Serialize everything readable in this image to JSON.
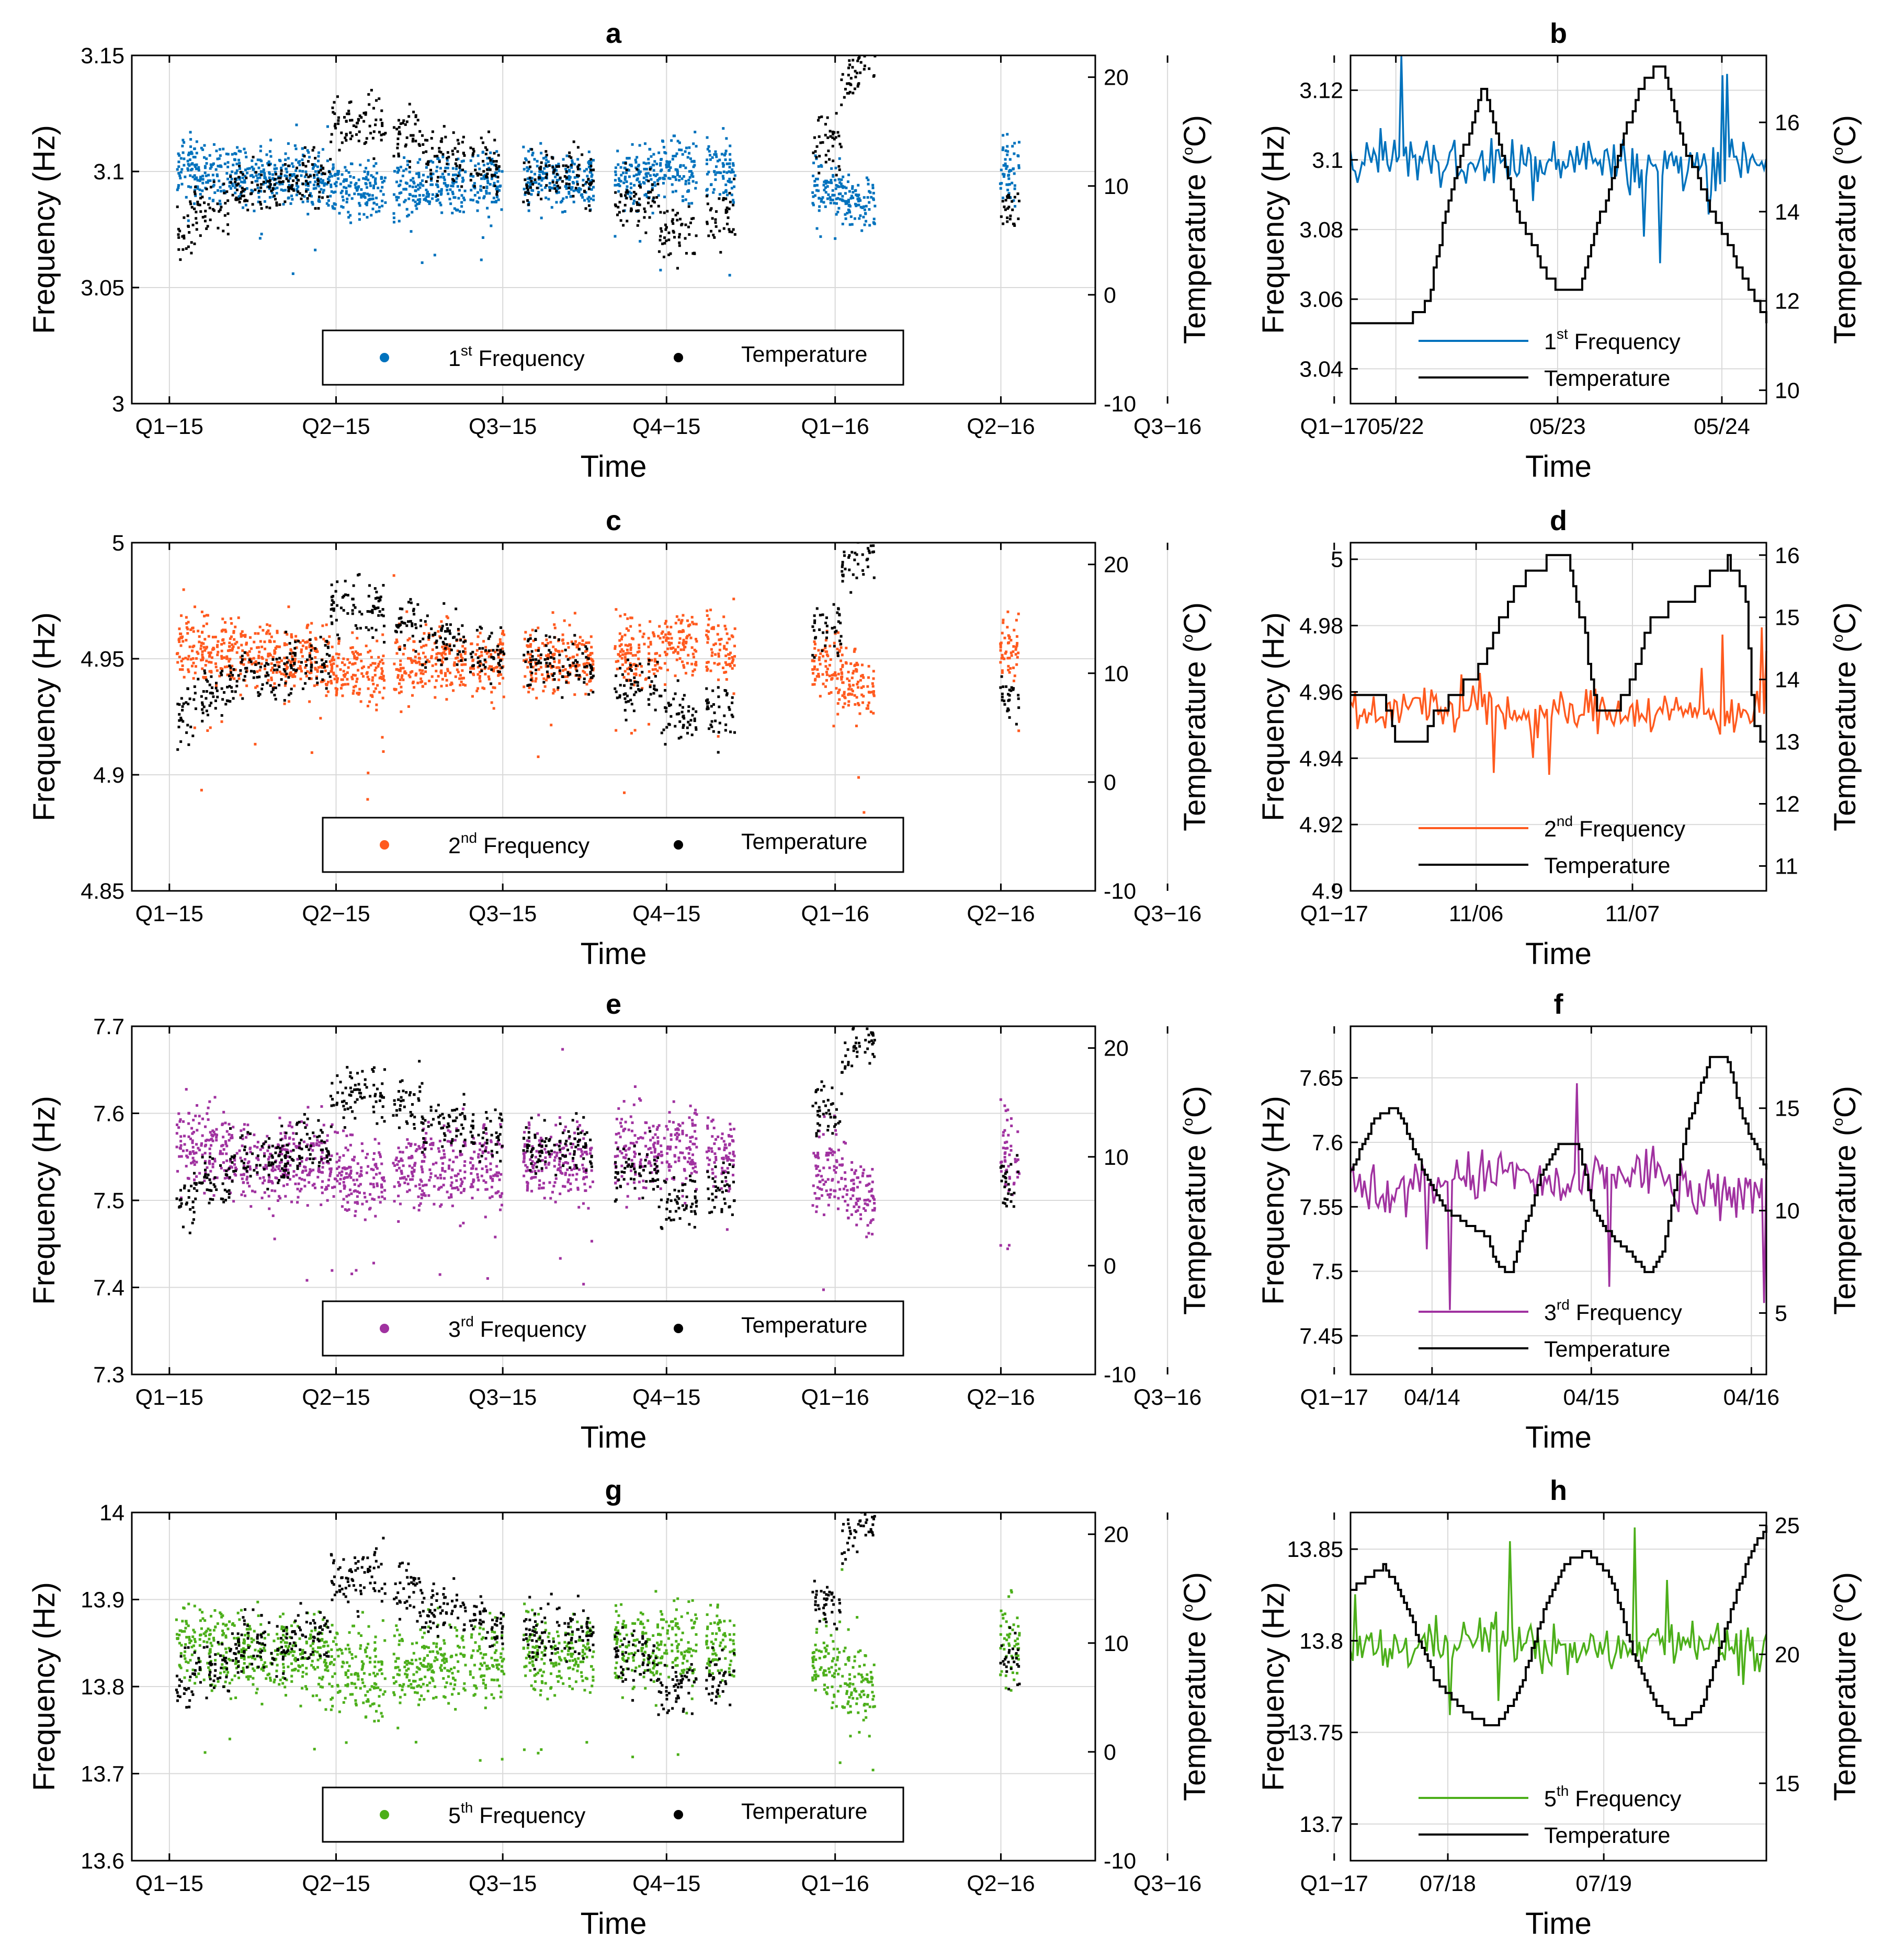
{
  "chart_data": [
    {
      "panel": "a",
      "type": "scatter",
      "title": "a",
      "xlabel": "Time",
      "ylabel": "Frequency (Hz)",
      "y2label_base": "Temperature (",
      "y2label_sup": "o",
      "y2label_end": "C)",
      "x_ticks": [
        "Q1−15",
        "Q2−15",
        "Q3−15",
        "Q4−15",
        "Q1−16",
        "Q2−16",
        "Q3−16",
        "Q1−17"
      ],
      "ylim": [
        3,
        3.15
      ],
      "y_ticks": [
        "3",
        "3.05",
        "3.1",
        "3.15"
      ],
      "y2lim": [
        -10,
        22
      ],
      "y2_ticks": [
        "-10",
        "0",
        "10",
        "20"
      ],
      "legend": [
        {
          "label": "Frequency",
          "prefix": "1",
          "sup": "st"
        },
        {
          "label": "Temperature"
        }
      ],
      "series": [
        {
          "name": "1st Frequency",
          "color": "#0072bd",
          "level_hz": 3.098,
          "spread_hz": 0.012
        },
        {
          "name": "Temperature",
          "color": "#000000",
          "levels_c": [
            6,
            10,
            12,
            16,
            13,
            12,
            10,
            8,
            6,
            6,
            12,
            16,
            7
          ]
        }
      ],
      "data_periods": [
        "2015-01 to 2015-07",
        "2015-08 to 2015-11",
        "2015-12 to 2016-01",
        "2016-04 to 2016-05",
        "2016-12"
      ]
    },
    {
      "panel": "b",
      "type": "line",
      "title": "b",
      "xlabel": "Time",
      "ylabel": "Frequency (Hz)",
      "y2label_base": "Temperature (",
      "y2label_sup": "o",
      "y2label_end": "C)",
      "x_ticks": [
        "05/22",
        "05/23",
        "05/24"
      ],
      "ylim": [
        3.03,
        3.13
      ],
      "y_ticks": [
        "3.04",
        "3.06",
        "3.08",
        "3.1",
        "3.12"
      ],
      "y2lim": [
        9.7,
        17.5
      ],
      "y2_ticks": [
        "10",
        "12",
        "14",
        "16"
      ],
      "legend": [
        {
          "label": "Frequency",
          "prefix": "1",
          "sup": "st"
        },
        {
          "label": "Temperature"
        }
      ],
      "series": [
        {
          "name": "1st Frequency",
          "color": "#0072bd",
          "typical_hz": 3.1,
          "range_hz": [
            3.055,
            3.13
          ]
        },
        {
          "name": "Temperature",
          "color": "#000000",
          "keypoints_c": [
            [
              0,
              11.6
            ],
            [
              0.18,
              11.4
            ],
            [
              0.28,
              12.0
            ],
            [
              0.36,
              14.5
            ],
            [
              0.48,
              16.8
            ],
            [
              0.6,
              14.0
            ],
            [
              0.72,
              12.4
            ],
            [
              0.82,
              12.2
            ],
            [
              0.92,
              14.3
            ],
            [
              1.04,
              16.8
            ],
            [
              1.12,
              17.3
            ],
            [
              1.2,
              15.5
            ],
            [
              1.34,
              13.5
            ],
            [
              1.5,
              11.6
            ]
          ]
        }
      ]
    },
    {
      "panel": "c",
      "type": "scatter",
      "title": "c",
      "xlabel": "Time",
      "ylabel": "Frequency (Hz)",
      "y2label_base": "Temperature (",
      "y2label_sup": "o",
      "y2label_end": "C)",
      "x_ticks": [
        "Q1−15",
        "Q2−15",
        "Q3−15",
        "Q4−15",
        "Q1−16",
        "Q2−16",
        "Q3−16",
        "Q1−17"
      ],
      "ylim": [
        4.85,
        5
      ],
      "y_ticks": [
        "4.85",
        "4.9",
        "4.95",
        "5"
      ],
      "y2lim": [
        -10,
        22
      ],
      "y2_ticks": [
        "-10",
        "0",
        "10",
        "20"
      ],
      "legend": [
        {
          "label": "Frequency",
          "prefix": "2",
          "sup": "nd"
        },
        {
          "label": "Temperature"
        }
      ],
      "series": [
        {
          "name": "2nd Frequency",
          "color": "#ff5a1f",
          "level_hz": 4.952,
          "spread_hz": 0.014
        },
        {
          "name": "Temperature",
          "color": "#000000",
          "levels_c": [
            6,
            10,
            12,
            16,
            13,
            12,
            10,
            8,
            6,
            6,
            12,
            16,
            7
          ]
        }
      ]
    },
    {
      "panel": "d",
      "type": "line",
      "title": "d",
      "xlabel": "Time",
      "ylabel": "Frequency (Hz)",
      "y2label_base": "Temperature (",
      "y2label_sup": "o",
      "y2label_end": "C)",
      "x_ticks": [
        "11/06",
        "11/07"
      ],
      "ylim": [
        4.9,
        5.005
      ],
      "y_ticks": [
        "4.9",
        "4.92",
        "4.94",
        "4.96",
        "4.98",
        "5"
      ],
      "y2lim": [
        10.6,
        16.2
      ],
      "y2_ticks": [
        "11",
        "12",
        "13",
        "14",
        "15",
        "16"
      ],
      "legend": [
        {
          "label": "Frequency",
          "prefix": "2",
          "sup": "nd"
        },
        {
          "label": "Temperature"
        }
      ],
      "series": [
        {
          "name": "2nd Frequency",
          "color": "#ff5a1f",
          "typical_hz": 4.955,
          "range_hz": [
            4.935,
            5.0
          ]
        },
        {
          "name": "Temperature",
          "color": "#000000",
          "keypoints_c": [
            [
              0,
              13.8
            ],
            [
              0.15,
              13.8
            ],
            [
              0.2,
              13.0
            ],
            [
              0.33,
              13.0
            ],
            [
              0.38,
              13.4
            ],
            [
              0.6,
              14.2
            ],
            [
              0.75,
              15.5
            ],
            [
              0.9,
              15.9
            ],
            [
              1.0,
              15.9
            ],
            [
              1.08,
              14.5
            ],
            [
              1.12,
              13.5
            ],
            [
              1.22,
              13.5
            ],
            [
              1.3,
              14.2
            ],
            [
              1.38,
              15.0
            ],
            [
              1.55,
              15.3
            ],
            [
              1.72,
              15.9
            ],
            [
              1.8,
              15.5
            ],
            [
              1.84,
              13.3
            ],
            [
              1.9,
              12.9
            ]
          ]
        }
      ]
    },
    {
      "panel": "e",
      "type": "scatter",
      "title": "e",
      "xlabel": "Time",
      "ylabel": "Frequency (Hz)",
      "y2label_base": "Temperature (",
      "y2label_sup": "o",
      "y2label_end": "C)",
      "x_ticks": [
        "Q1−15",
        "Q2−15",
        "Q3−15",
        "Q4−15",
        "Q1−16",
        "Q2−16",
        "Q3−16",
        "Q1−17"
      ],
      "ylim": [
        7.3,
        7.7
      ],
      "y_ticks": [
        "7.3",
        "7.4",
        "7.5",
        "7.6",
        "7.7"
      ],
      "y2lim": [
        -10,
        22
      ],
      "y2_ticks": [
        "-10",
        "0",
        "10",
        "20"
      ],
      "legend": [
        {
          "label": "Frequency",
          "prefix": "3",
          "sup": "rd"
        },
        {
          "label": "Temperature"
        }
      ],
      "series": [
        {
          "name": "3rd Frequency",
          "color": "#a032a0",
          "level_hz": 7.55,
          "spread_hz": 0.045
        },
        {
          "name": "Temperature",
          "color": "#000000",
          "levels_c": [
            6,
            10,
            12,
            16,
            13,
            12,
            10,
            8,
            6,
            6,
            12,
            16,
            7
          ]
        }
      ]
    },
    {
      "panel": "f",
      "type": "line",
      "title": "f",
      "xlabel": "Time",
      "ylabel": "Frequency (Hz)",
      "y2label_base": "Temperature (",
      "y2label_sup": "o",
      "y2label_end": "C)",
      "x_ticks": [
        "04/14",
        "04/15",
        "04/16"
      ],
      "ylim": [
        7.42,
        7.69
      ],
      "y_ticks": [
        "7.45",
        "7.5",
        "7.55",
        "7.6",
        "7.65"
      ],
      "y2lim": [
        2,
        19
      ],
      "y2_ticks": [
        "5",
        "10",
        "15"
      ],
      "legend": [
        {
          "label": "Frequency",
          "prefix": "3",
          "sup": "rd"
        },
        {
          "label": "Temperature"
        }
      ],
      "series": [
        {
          "name": "3rd Frequency",
          "color": "#a032a0",
          "typical_hz": 7.57,
          "range_hz": [
            7.47,
            7.68
          ]
        },
        {
          "name": "Temperature",
          "color": "#000000",
          "keypoints_c": [
            [
              0,
              12.0
            ],
            [
              0.15,
              14.5
            ],
            [
              0.25,
              15.0
            ],
            [
              0.3,
              14.8
            ],
            [
              0.45,
              12.0
            ],
            [
              0.6,
              10.0
            ],
            [
              0.75,
              9.2
            ],
            [
              0.85,
              8.8
            ],
            [
              0.92,
              7.2
            ],
            [
              1.0,
              7.0
            ],
            [
              1.2,
              12.0
            ],
            [
              1.3,
              13.2
            ],
            [
              1.42,
              13.2
            ],
            [
              1.52,
              10.0
            ],
            [
              1.65,
              8.5
            ],
            [
              1.75,
              8.0
            ],
            [
              1.85,
              6.8
            ],
            [
              1.95,
              8.0
            ],
            [
              2.1,
              14.0
            ],
            [
              2.25,
              17.5
            ],
            [
              2.35,
              17.5
            ],
            [
              2.45,
              14.5
            ],
            [
              2.6,
              12.0
            ]
          ]
        }
      ]
    },
    {
      "panel": "g",
      "type": "scatter",
      "title": "g",
      "xlabel": "Time",
      "ylabel": "Frequency (Hz)",
      "y2label_base": "Temperature (",
      "y2label_sup": "o",
      "y2label_end": "C)",
      "x_ticks": [
        "Q1−15",
        "Q2−15",
        "Q3−15",
        "Q4−15",
        "Q1−16",
        "Q2−16",
        "Q3−16",
        "Q1−17"
      ],
      "ylim": [
        13.6,
        14
      ],
      "y_ticks": [
        "13.6",
        "13.7",
        "13.8",
        "13.9",
        "14"
      ],
      "y2lim": [
        -10,
        22
      ],
      "y2_ticks": [
        "-10",
        "0",
        "10",
        "20"
      ],
      "legend": [
        {
          "label": "Frequency",
          "prefix": "5",
          "sup": "th"
        },
        {
          "label": "Temperature"
        }
      ],
      "series": [
        {
          "name": "5th Frequency",
          "color": "#4caf1a",
          "level_hz": 13.84,
          "spread_hz": 0.045
        },
        {
          "name": "Temperature",
          "color": "#000000",
          "levels_c": [
            6,
            10,
            12,
            16,
            13,
            12,
            10,
            8,
            6,
            6,
            12,
            16,
            7
          ]
        }
      ]
    },
    {
      "panel": "h",
      "type": "line",
      "title": "h",
      "xlabel": "Time",
      "ylabel": "Frequency (Hz)",
      "y2label_base": "Temperature (",
      "y2label_sup": "o",
      "y2label_end": "C)",
      "x_ticks": [
        "07/18",
        "07/19"
      ],
      "ylim": [
        13.68,
        13.87
      ],
      "y_ticks": [
        "13.7",
        "13.75",
        "13.8",
        "13.85"
      ],
      "y2lim": [
        12,
        25.5
      ],
      "y2_ticks": [
        "15",
        "20",
        "25"
      ],
      "legend": [
        {
          "label": "Frequency",
          "prefix": "5",
          "sup": "th"
        },
        {
          "label": "Temperature"
        }
      ],
      "series": [
        {
          "name": "5th Frequency",
          "color": "#4caf1a",
          "typical_hz": 13.8,
          "range_hz": [
            13.745,
            13.87
          ]
        },
        {
          "name": "Temperature",
          "color": "#000000",
          "keypoints_c": [
            [
              0,
              22.5
            ],
            [
              0.12,
              23.0
            ],
            [
              0.22,
              23.5
            ],
            [
              0.35,
              22.0
            ],
            [
              0.55,
              19.0
            ],
            [
              0.7,
              18.0
            ],
            [
              0.82,
              17.5
            ],
            [
              0.95,
              17.2
            ],
            [
              1.1,
              18.5
            ],
            [
              1.25,
              21.5
            ],
            [
              1.4,
              23.5
            ],
            [
              1.55,
              24.0
            ],
            [
              1.7,
              23.0
            ],
            [
              1.85,
              20.0
            ],
            [
              2.0,
              18.0
            ],
            [
              2.15,
              17.2
            ],
            [
              2.3,
              18.0
            ],
            [
              2.4,
              20.0
            ],
            [
              2.5,
              22.0
            ],
            [
              2.62,
              24.0
            ],
            [
              2.72,
              25.0
            ]
          ]
        }
      ]
    }
  ]
}
